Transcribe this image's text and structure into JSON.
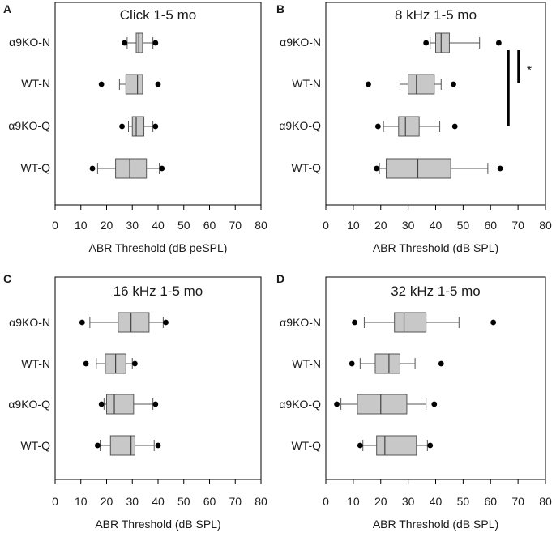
{
  "chart_data": [
    {
      "panel": "A",
      "type": "boxplot",
      "title": "Click 1-5 mo",
      "xlabel": "ABR Threshold (dB peSPL)",
      "xlim": [
        0,
        80
      ],
      "xticks": [
        0,
        10,
        20,
        30,
        40,
        50,
        60,
        70,
        80
      ],
      "categories": [
        "α9KO-N",
        "WT-N",
        "α9KO-Q",
        "WT-Q"
      ],
      "boxes": [
        {
          "name": "α9KO-N",
          "q1": 31.5,
          "median": 32.5,
          "q3": 34,
          "whisker_low": 28,
          "whisker_high": 38,
          "outliers": [
            27,
            39
          ]
        },
        {
          "name": "WT-N",
          "q1": 27.5,
          "median": 32,
          "q3": 34,
          "whisker_low": 25,
          "whisker_high": 34,
          "outliers": [
            18,
            40
          ]
        },
        {
          "name": "α9KO-Q",
          "q1": 30,
          "median": 31.5,
          "q3": 34.5,
          "whisker_low": 28.5,
          "whisker_high": 38,
          "outliers": [
            26,
            39
          ]
        },
        {
          "name": "WT-Q",
          "q1": 23.5,
          "median": 29,
          "q3": 35.5,
          "whisker_low": 16.5,
          "whisker_high": 40.5,
          "outliers": [
            14.5,
            41.5
          ]
        }
      ],
      "significance": []
    },
    {
      "panel": "B",
      "type": "boxplot",
      "title": "8 kHz 1-5 mo",
      "xlabel": "ABR Threshold (dB SPL)",
      "xlim": [
        0,
        80
      ],
      "xticks": [
        0,
        10,
        20,
        30,
        40,
        50,
        60,
        70,
        80
      ],
      "categories": [
        "α9KO-N",
        "WT-N",
        "α9KO-Q",
        "WT-Q"
      ],
      "boxes": [
        {
          "name": "α9KO-N",
          "q1": 40,
          "median": 42,
          "q3": 45,
          "whisker_low": 38,
          "whisker_high": 56,
          "outliers": [
            36.5,
            63
          ]
        },
        {
          "name": "WT-N",
          "q1": 30,
          "median": 33,
          "q3": 39.5,
          "whisker_low": 27,
          "whisker_high": 42,
          "outliers": [
            15.5,
            46.5
          ]
        },
        {
          "name": "α9KO-Q",
          "q1": 26.5,
          "median": 29,
          "q3": 34,
          "whisker_low": 21,
          "whisker_high": 41.5,
          "outliers": [
            19,
            47
          ]
        },
        {
          "name": "WT-Q",
          "q1": 22,
          "median": 33.5,
          "q3": 45.5,
          "whisker_low": 19.5,
          "whisker_high": 59,
          "outliers": [
            18.5,
            63.5
          ]
        }
      ],
      "significance": [
        {
          "label": "*",
          "from": "α9KO-N",
          "to": "WT-N"
        },
        {
          "label": "",
          "from": "α9KO-N",
          "to": "α9KO-Q"
        }
      ]
    },
    {
      "panel": "C",
      "type": "boxplot",
      "title": "16 kHz 1-5 mo",
      "xlabel": "ABR Threshold (dB SPL)",
      "xlim": [
        0,
        80
      ],
      "xticks": [
        0,
        10,
        20,
        30,
        40,
        50,
        60,
        70,
        80
      ],
      "categories": [
        "α9KO-N",
        "WT-N",
        "α9KO-Q",
        "WT-Q"
      ],
      "boxes": [
        {
          "name": "α9KO-N",
          "q1": 24.5,
          "median": 29.5,
          "q3": 36.5,
          "whisker_low": 13.5,
          "whisker_high": 42,
          "outliers": [
            10.5,
            43
          ]
        },
        {
          "name": "WT-N",
          "q1": 19.5,
          "median": 23.5,
          "q3": 27.5,
          "whisker_low": 16,
          "whisker_high": 30,
          "outliers": [
            12,
            31
          ]
        },
        {
          "name": "α9KO-Q",
          "q1": 20,
          "median": 23,
          "q3": 30.5,
          "whisker_low": 19,
          "whisker_high": 38,
          "outliers": [
            18,
            39
          ]
        },
        {
          "name": "WT-Q",
          "q1": 21.5,
          "median": 29.5,
          "q3": 31,
          "whisker_low": 17.5,
          "whisker_high": 38.5,
          "outliers": [
            16.5,
            40
          ]
        }
      ],
      "significance": []
    },
    {
      "panel": "D",
      "type": "boxplot",
      "title": "32 kHz 1-5 mo",
      "xlabel": "ABR Threshold (dB SPL)",
      "xlim": [
        0,
        80
      ],
      "xticks": [
        0,
        10,
        20,
        30,
        40,
        50,
        60,
        70,
        80
      ],
      "categories": [
        "α9KO-N",
        "WT-N",
        "α9KO-Q",
        "WT-Q"
      ],
      "boxes": [
        {
          "name": "α9KO-N",
          "q1": 25,
          "median": 28.5,
          "q3": 36.5,
          "whisker_low": 14,
          "whisker_high": 48.5,
          "outliers": [
            10.5,
            61
          ]
        },
        {
          "name": "WT-N",
          "q1": 18,
          "median": 23,
          "q3": 27,
          "whisker_low": 12.5,
          "whisker_high": 32.5,
          "outliers": [
            9.5,
            42
          ]
        },
        {
          "name": "α9KO-Q",
          "q1": 11.5,
          "median": 20,
          "q3": 29.5,
          "whisker_low": 5.5,
          "whisker_high": 36.5,
          "outliers": [
            4,
            39.5
          ]
        },
        {
          "name": "WT-Q",
          "q1": 18.5,
          "median": 21.5,
          "q3": 33,
          "whisker_low": 13.5,
          "whisker_high": 37,
          "outliers": [
            12.5,
            38
          ]
        }
      ],
      "significance": []
    }
  ]
}
